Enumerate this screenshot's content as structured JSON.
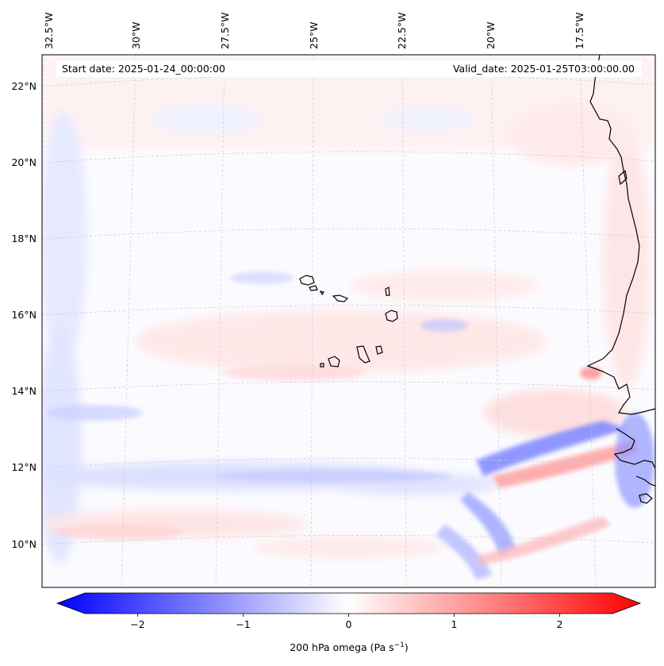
{
  "annotations": {
    "start_date": "Start date: 2025-01-24_00:00:00",
    "valid_date": "Valid_date: 2025-01-25T03:00:00.00"
  },
  "longitude_labels": [
    "32.5°W",
    "30°W",
    "27.5°W",
    "25°W",
    "22.5°W",
    "20°W",
    "17.5°W"
  ],
  "latitude_labels": [
    "22°N",
    "20°N",
    "18°N",
    "16°N",
    "14°N",
    "12°N",
    "10°N"
  ],
  "colorbar": {
    "label": "200 hPa omega (Pa s",
    "label_superscript": "−1",
    "label_close": ")",
    "ticks": [
      "−2",
      "−1",
      "0",
      "1",
      "2"
    ],
    "tick_values": [
      -2,
      -1,
      0,
      1,
      2
    ],
    "range": [
      -2.5,
      2.5
    ],
    "colormap": "bwr",
    "colors": {
      "low": "#0000ff",
      "mid": "#ffffff",
      "high": "#ff0000"
    }
  },
  "map": {
    "variable": "200 hPa omega",
    "units": "Pa s^-1",
    "projection": "lambert-conformal",
    "gridlines": true,
    "coastline_color": "#000000"
  }
}
